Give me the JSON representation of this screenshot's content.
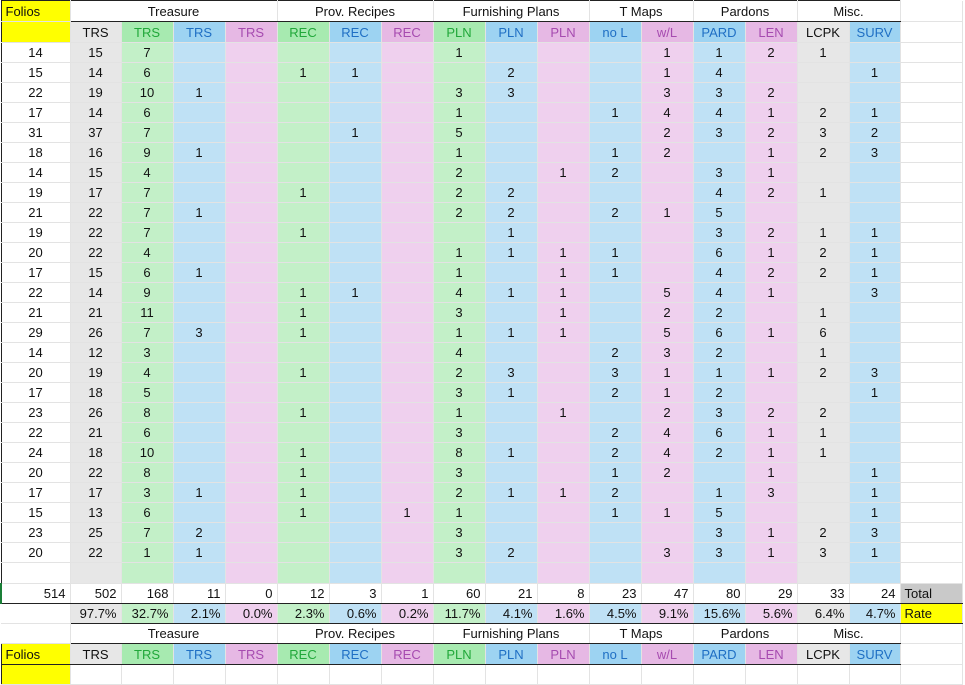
{
  "colors": {
    "yellow": "#ffff00",
    "grey": "#e7e7e7",
    "green": "#c3f0c8",
    "blue": "#bfe1f5",
    "pink": "#efd0ee",
    "green_dark": "#a7eab0",
    "blue_dark": "#9dd3f2",
    "pink_dark": "#e6b8e4",
    "green_text": "#21a83a",
    "blue_text": "#1f6fc4",
    "pink_text": "#a64bb0"
  },
  "corner_label": "Folios",
  "groups": [
    {
      "label": "Treasure",
      "span": 4
    },
    {
      "label": "Prov. Recipes",
      "span": 3
    },
    {
      "label": "Furnishing Plans",
      "span": 3
    },
    {
      "label": "T Maps",
      "span": 2
    },
    {
      "label": "Pardons",
      "span": 2
    },
    {
      "label": "Misc.",
      "span": 2
    }
  ],
  "columns": [
    {
      "label": "TRS",
      "tone": "grey"
    },
    {
      "label": "TRS",
      "tone": "green"
    },
    {
      "label": "TRS",
      "tone": "blue"
    },
    {
      "label": "TRS",
      "tone": "pink"
    },
    {
      "label": "REC",
      "tone": "green"
    },
    {
      "label": "REC",
      "tone": "blue"
    },
    {
      "label": "REC",
      "tone": "pink"
    },
    {
      "label": "PLN",
      "tone": "green"
    },
    {
      "label": "PLN",
      "tone": "blue"
    },
    {
      "label": "PLN",
      "tone": "pink"
    },
    {
      "label": "no L",
      "tone": "blue"
    },
    {
      "label": "w/L",
      "tone": "pink"
    },
    {
      "label": "PARD",
      "tone": "blue"
    },
    {
      "label": "LEN",
      "tone": "pink"
    },
    {
      "label": "LCPK",
      "tone": "grey"
    },
    {
      "label": "SURV",
      "tone": "blue"
    }
  ],
  "rows": [
    [
      "14",
      "15",
      "7",
      "",
      "",
      "",
      "",
      "",
      "1",
      "",
      "",
      "",
      "1",
      "1",
      "2",
      "1",
      ""
    ],
    [
      "15",
      "14",
      "6",
      "",
      "",
      "1",
      "1",
      "",
      "",
      "2",
      "",
      "",
      "1",
      "4",
      "",
      "",
      "1"
    ],
    [
      "22",
      "19",
      "10",
      "1",
      "",
      "",
      "",
      "",
      "3",
      "3",
      "",
      "",
      "3",
      "3",
      "2",
      "",
      ""
    ],
    [
      "17",
      "14",
      "6",
      "",
      "",
      "",
      "",
      "",
      "1",
      "",
      "",
      "1",
      "4",
      "4",
      "1",
      "2",
      "1"
    ],
    [
      "31",
      "37",
      "7",
      "",
      "",
      "",
      "1",
      "",
      "5",
      "",
      "",
      "",
      "2",
      "3",
      "2",
      "3",
      "2"
    ],
    [
      "18",
      "16",
      "9",
      "1",
      "",
      "",
      "",
      "",
      "1",
      "",
      "",
      "1",
      "2",
      "",
      "1",
      "2",
      "3"
    ],
    [
      "14",
      "15",
      "4",
      "",
      "",
      "",
      "",
      "",
      "2",
      "",
      "1",
      "2",
      "",
      "3",
      "1",
      "",
      ""
    ],
    [
      "19",
      "17",
      "7",
      "",
      "",
      "1",
      "",
      "",
      "2",
      "2",
      "",
      "",
      "",
      "4",
      "2",
      "1",
      ""
    ],
    [
      "21",
      "22",
      "7",
      "1",
      "",
      "",
      "",
      "",
      "2",
      "2",
      "",
      "2",
      "1",
      "5",
      "",
      "",
      ""
    ],
    [
      "19",
      "22",
      "7",
      "",
      "",
      "1",
      "",
      "",
      "",
      "1",
      "",
      "",
      "",
      "3",
      "2",
      "1",
      "1"
    ],
    [
      "20",
      "22",
      "4",
      "",
      "",
      "",
      "",
      "",
      "1",
      "1",
      "1",
      "1",
      "",
      "6",
      "1",
      "2",
      "1"
    ],
    [
      "17",
      "15",
      "6",
      "1",
      "",
      "",
      "",
      "",
      "1",
      "",
      "1",
      "1",
      "",
      "4",
      "2",
      "2",
      "1"
    ],
    [
      "22",
      "14",
      "9",
      "",
      "",
      "1",
      "1",
      "",
      "4",
      "1",
      "1",
      "",
      "5",
      "4",
      "1",
      "",
      "3"
    ],
    [
      "21",
      "21",
      "11",
      "",
      "",
      "1",
      "",
      "",
      "3",
      "",
      "1",
      "",
      "2",
      "2",
      "",
      "1",
      ""
    ],
    [
      "29",
      "26",
      "7",
      "3",
      "",
      "1",
      "",
      "",
      "1",
      "1",
      "1",
      "",
      "5",
      "6",
      "1",
      "6",
      ""
    ],
    [
      "14",
      "12",
      "3",
      "",
      "",
      "",
      "",
      "",
      "4",
      "",
      "",
      "2",
      "3",
      "2",
      "",
      "1",
      ""
    ],
    [
      "20",
      "19",
      "4",
      "",
      "",
      "1",
      "",
      "",
      "2",
      "3",
      "",
      "3",
      "1",
      "1",
      "1",
      "2",
      "3"
    ],
    [
      "17",
      "18",
      "5",
      "",
      "",
      "",
      "",
      "",
      "3",
      "1",
      "",
      "2",
      "1",
      "2",
      "",
      "",
      "1"
    ],
    [
      "23",
      "26",
      "8",
      "",
      "",
      "1",
      "",
      "",
      "1",
      "",
      "1",
      "",
      "2",
      "3",
      "2",
      "2",
      ""
    ],
    [
      "22",
      "21",
      "6",
      "",
      "",
      "",
      "",
      "",
      "3",
      "",
      "",
      "2",
      "4",
      "6",
      "1",
      "1",
      ""
    ],
    [
      "24",
      "18",
      "10",
      "",
      "",
      "1",
      "",
      "",
      "8",
      "1",
      "",
      "2",
      "4",
      "2",
      "1",
      "1",
      ""
    ],
    [
      "20",
      "22",
      "8",
      "",
      "",
      "1",
      "",
      "",
      "3",
      "",
      "",
      "1",
      "2",
      "",
      "1",
      "",
      "1"
    ],
    [
      "17",
      "17",
      "3",
      "1",
      "",
      "1",
      "",
      "",
      "2",
      "1",
      "1",
      "2",
      "",
      "1",
      "3",
      "",
      "1"
    ],
    [
      "15",
      "13",
      "6",
      "",
      "",
      "1",
      "",
      "1",
      "1",
      "",
      "",
      "1",
      "1",
      "5",
      "",
      "",
      "1"
    ],
    [
      "23",
      "25",
      "7",
      "2",
      "",
      "",
      "",
      "",
      "3",
      "",
      "",
      "",
      "",
      "3",
      "1",
      "2",
      "3"
    ],
    [
      "20",
      "22",
      "1",
      "1",
      "",
      "",
      "",
      "",
      "3",
      "2",
      "",
      "",
      "3",
      "3",
      "1",
      "3",
      "1"
    ]
  ],
  "totals": {
    "folios": "514",
    "values": [
      "502",
      "168",
      "11",
      "0",
      "12",
      "3",
      "1",
      "60",
      "21",
      "8",
      "23",
      "47",
      "80",
      "29",
      "33",
      "24"
    ],
    "label": "Total"
  },
  "rates": {
    "values": [
      "97.7%",
      "32.7%",
      "2.1%",
      "0.0%",
      "2.3%",
      "0.6%",
      "0.2%",
      "11.7%",
      "4.1%",
      "1.6%",
      "4.5%",
      "9.1%",
      "15.6%",
      "5.6%",
      "6.4%",
      "4.7%"
    ],
    "label": "Rate"
  }
}
